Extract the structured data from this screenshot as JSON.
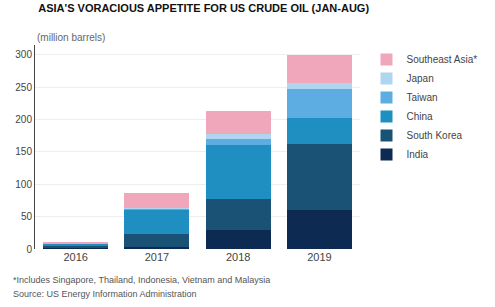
{
  "chart_data": {
    "type": "bar",
    "title": "ASIA'S VORACIOUS APPETITE FOR US CRUDE OIL (JAN-AUG)",
    "ylabel": "(million barrels)",
    "annotations": [
      "*Includes Singapore, Thailand, Indonesia, Vietnam and Malaysia",
      "Source: US Energy Information Administration"
    ],
    "categories": [
      "2016",
      "2017",
      "2018",
      "2019"
    ],
    "series": [
      {
        "name": "India",
        "color": "#0d2a52",
        "values": [
          1,
          3,
          30,
          60
        ]
      },
      {
        "name": "South Korea",
        "color": "#1a5276",
        "values": [
          4,
          20,
          47,
          102
        ]
      },
      {
        "name": "China",
        "color": "#1f8fc1",
        "values": [
          3,
          38,
          83,
          40
        ]
      },
      {
        "name": "Taiwan",
        "color": "#5dade2",
        "values": [
          1,
          2,
          10,
          45
        ]
      },
      {
        "name": "Japan",
        "color": "#aed6f1",
        "values": [
          0,
          1,
          8,
          10
        ]
      },
      {
        "name": "Southeast Asia*",
        "color": "#f1a7bb",
        "values": [
          1,
          22,
          35,
          43
        ]
      }
    ],
    "stacked": true,
    "ylim": [
      0,
      315
    ],
    "yticks": [
      0,
      50,
      100,
      150,
      200,
      250,
      300
    ],
    "grid": true,
    "legend": "right"
  }
}
